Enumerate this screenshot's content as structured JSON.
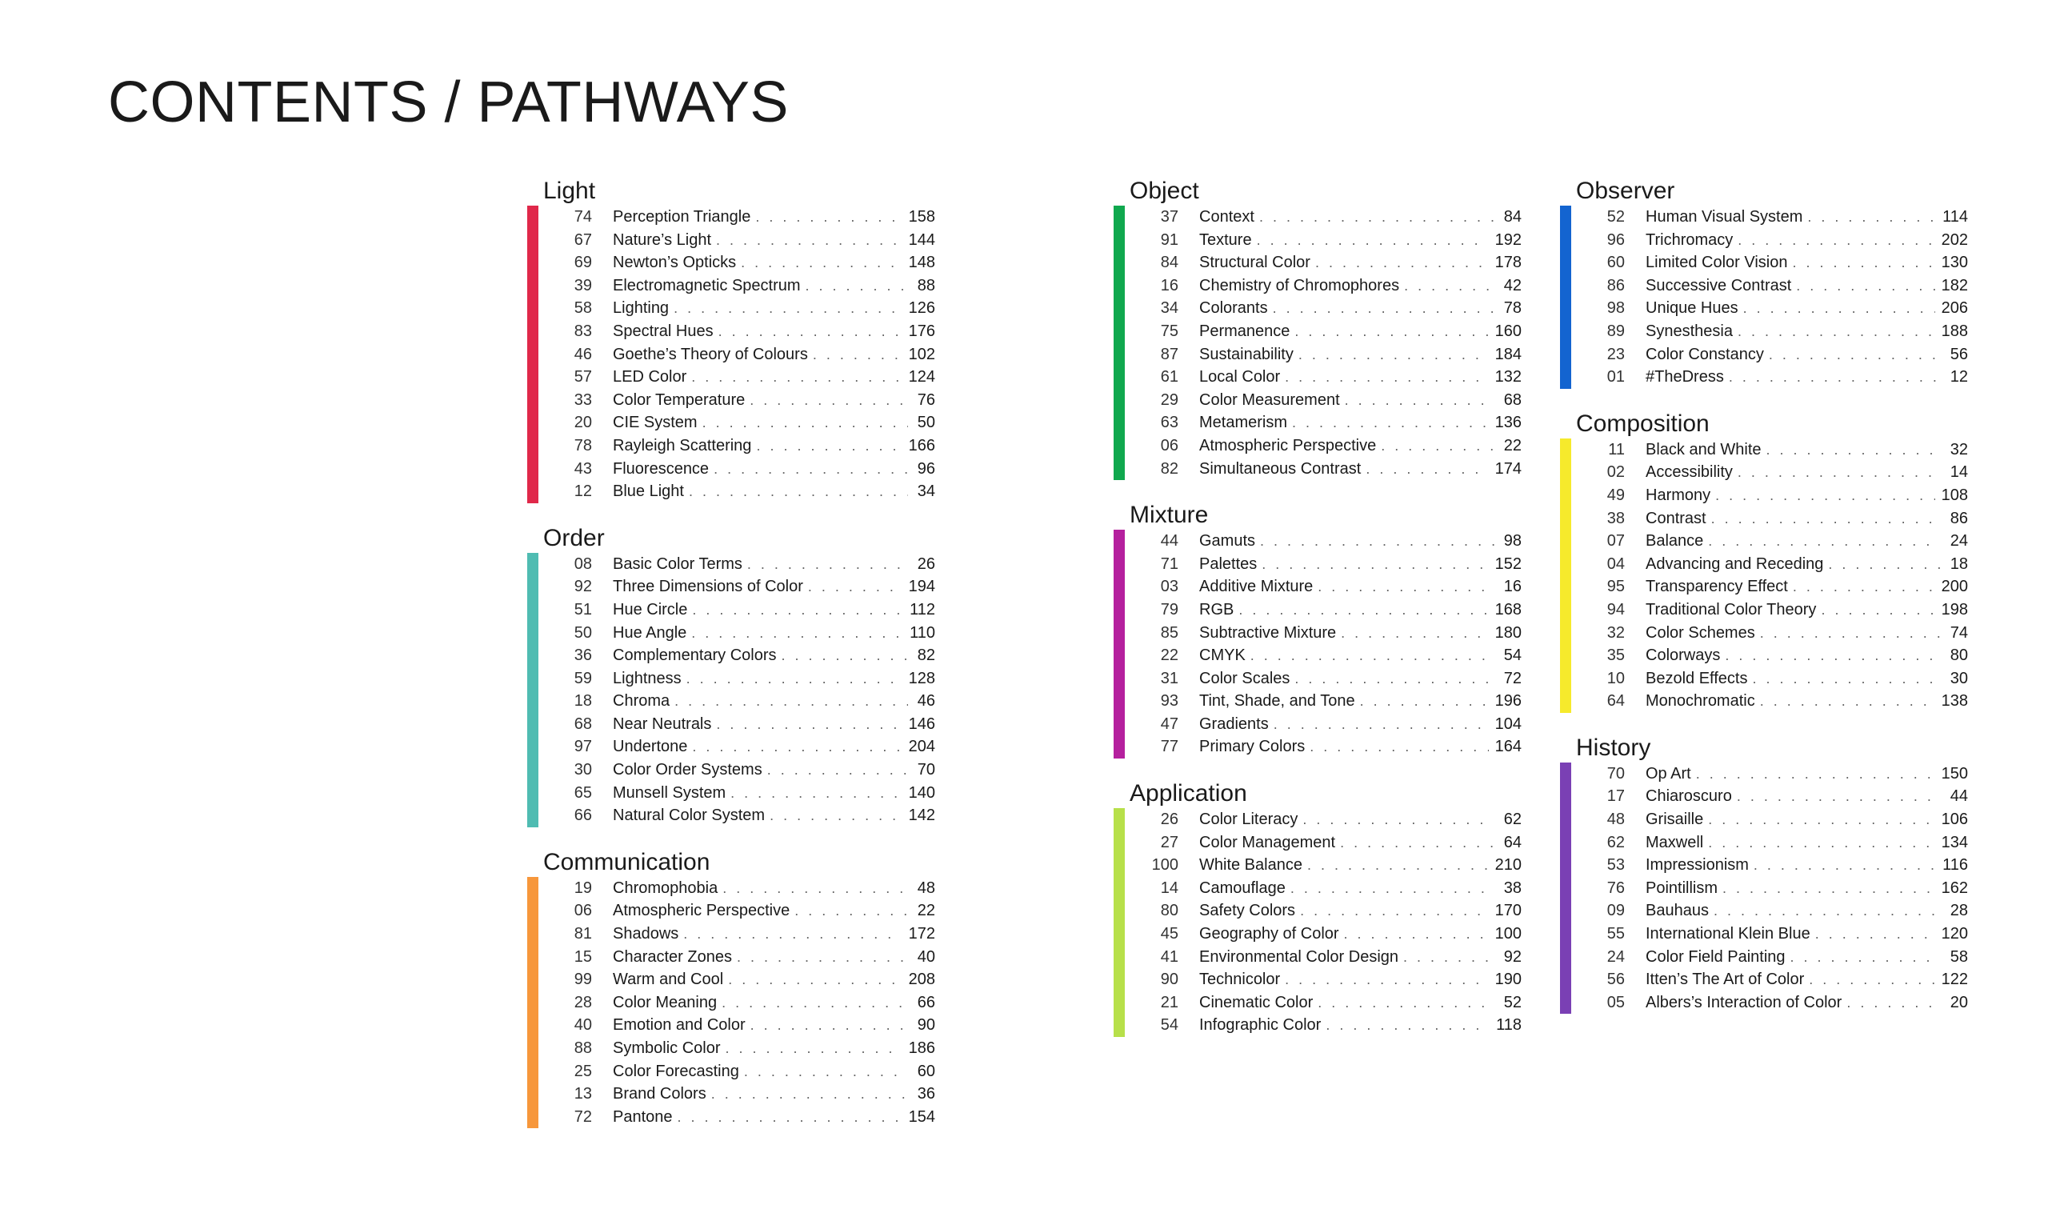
{
  "page_title": "CONTENTS / PATHWAYS",
  "columns": [
    [
      {
        "title": "Light",
        "color": "#e0284a",
        "entries": [
          {
            "num": "74",
            "title": "Perception Triangle",
            "page": "158"
          },
          {
            "num": "67",
            "title": "Nature’s Light",
            "page": "144"
          },
          {
            "num": "69",
            "title": "Newton’s Opticks",
            "page": "148"
          },
          {
            "num": "39",
            "title": "Electromagnetic Spectrum",
            "page": "88"
          },
          {
            "num": "58",
            "title": "Lighting",
            "page": "126"
          },
          {
            "num": "83",
            "title": "Spectral Hues",
            "page": "176"
          },
          {
            "num": "46",
            "title": "Goethe’s Theory of Colours",
            "page": "102"
          },
          {
            "num": "57",
            "title": "LED Color",
            "page": "124"
          },
          {
            "num": "33",
            "title": "Color Temperature",
            "page": "76"
          },
          {
            "num": "20",
            "title": "CIE System",
            "page": "50"
          },
          {
            "num": "78",
            "title": "Rayleigh Scattering",
            "page": "166"
          },
          {
            "num": "43",
            "title": "Fluorescence",
            "page": "96"
          },
          {
            "num": "12",
            "title": "Blue Light",
            "page": "34"
          }
        ]
      },
      {
        "title": "Order",
        "color": "#4fbcb2",
        "entries": [
          {
            "num": "08",
            "title": "Basic Color Terms",
            "page": "26"
          },
          {
            "num": "92",
            "title": "Three Dimensions of Color",
            "page": "194"
          },
          {
            "num": "51",
            "title": "Hue Circle",
            "page": "112"
          },
          {
            "num": "50",
            "title": "Hue Angle",
            "page": "110"
          },
          {
            "num": "36",
            "title": "Complementary Colors",
            "page": "82"
          },
          {
            "num": "59",
            "title": "Lightness",
            "page": "128"
          },
          {
            "num": "18",
            "title": "Chroma",
            "page": "46"
          },
          {
            "num": "68",
            "title": "Near Neutrals",
            "page": "146"
          },
          {
            "num": "97",
            "title": "Undertone",
            "page": "204"
          },
          {
            "num": "30",
            "title": "Color Order Systems",
            "page": "70"
          },
          {
            "num": "65",
            "title": "Munsell System",
            "page": "140"
          },
          {
            "num": "66",
            "title": "Natural Color System",
            "page": "142"
          }
        ]
      },
      {
        "title": "Communication",
        "color": "#f7973b",
        "entries": [
          {
            "num": "19",
            "title": "Chromophobia",
            "page": "48"
          },
          {
            "num": "06",
            "title": "Atmospheric Perspective",
            "page": "22"
          },
          {
            "num": "81",
            "title": "Shadows",
            "page": "172"
          },
          {
            "num": "15",
            "title": "Character Zones",
            "page": "40"
          },
          {
            "num": "99",
            "title": "Warm and Cool",
            "page": "208"
          },
          {
            "num": "28",
            "title": "Color Meaning",
            "page": "66"
          },
          {
            "num": "40",
            "title": "Emotion and Color",
            "page": "90"
          },
          {
            "num": "88",
            "title": "Symbolic Color",
            "page": "186"
          },
          {
            "num": "25",
            "title": "Color Forecasting",
            "page": "60"
          },
          {
            "num": "13",
            "title": "Brand Colors",
            "page": "36"
          },
          {
            "num": "72",
            "title": "Pantone",
            "page": "154"
          }
        ]
      }
    ],
    [
      {
        "title": "Object",
        "color": "#10a84e",
        "entries": [
          {
            "num": "37",
            "title": "Context",
            "page": "84"
          },
          {
            "num": "91",
            "title": "Texture",
            "page": "192"
          },
          {
            "num": "84",
            "title": "Structural Color",
            "page": "178"
          },
          {
            "num": "16",
            "title": "Chemistry of Chromophores",
            "page": "42"
          },
          {
            "num": "34",
            "title": "Colorants",
            "page": "78"
          },
          {
            "num": "75",
            "title": "Permanence",
            "page": "160"
          },
          {
            "num": "87",
            "title": "Sustainability",
            "page": "184"
          },
          {
            "num": "61",
            "title": "Local Color",
            "page": "132"
          },
          {
            "num": "29",
            "title": "Color Measurement",
            "page": "68"
          },
          {
            "num": "63",
            "title": "Metamerism",
            "page": "136"
          },
          {
            "num": "06",
            "title": "Atmospheric Perspective",
            "page": "22"
          },
          {
            "num": "82",
            "title": "Simultaneous Contrast",
            "page": "174"
          }
        ]
      },
      {
        "title": "Mixture",
        "color": "#b5209e",
        "entries": [
          {
            "num": "44",
            "title": "Gamuts",
            "page": "98"
          },
          {
            "num": "71",
            "title": "Palettes",
            "page": "152"
          },
          {
            "num": "03",
            "title": "Additive Mixture",
            "page": "16"
          },
          {
            "num": "79",
            "title": "RGB",
            "page": "168"
          },
          {
            "num": "85",
            "title": "Subtractive Mixture",
            "page": "180"
          },
          {
            "num": "22",
            "title": "CMYK",
            "page": "54"
          },
          {
            "num": "31",
            "title": "Color Scales",
            "page": "72"
          },
          {
            "num": "93",
            "title": "Tint, Shade, and Tone",
            "page": "196"
          },
          {
            "num": "47",
            "title": "Gradients",
            "page": "104"
          },
          {
            "num": "77",
            "title": "Primary Colors",
            "page": "164"
          }
        ]
      },
      {
        "title": "Application",
        "color": "#b7e04a",
        "entries": [
          {
            "num": "26",
            "title": "Color Literacy",
            "page": "62"
          },
          {
            "num": "27",
            "title": "Color Management",
            "page": "64"
          },
          {
            "num": "100",
            "title": "White Balance",
            "page": "210"
          },
          {
            "num": "14",
            "title": "Camouflage",
            "page": "38"
          },
          {
            "num": "80",
            "title": "Safety Colors",
            "page": "170"
          },
          {
            "num": "45",
            "title": "Geography of Color",
            "page": "100"
          },
          {
            "num": "41",
            "title": "Environmental Color Design",
            "page": "92"
          },
          {
            "num": "90",
            "title": "Technicolor",
            "page": "190"
          },
          {
            "num": "21",
            "title": "Cinematic Color",
            "page": "52"
          },
          {
            "num": "54",
            "title": "Infographic Color",
            "page": "118"
          }
        ]
      }
    ],
    [
      {
        "title": "Observer",
        "color": "#1364d0",
        "entries": [
          {
            "num": "52",
            "title": "Human Visual System",
            "page": "114"
          },
          {
            "num": "96",
            "title": "Trichromacy",
            "page": "202"
          },
          {
            "num": "60",
            "title": "Limited Color Vision",
            "page": "130"
          },
          {
            "num": "86",
            "title": "Successive Contrast",
            "page": "182"
          },
          {
            "num": "98",
            "title": "Unique Hues",
            "page": "206"
          },
          {
            "num": "89",
            "title": "Synesthesia",
            "page": "188"
          },
          {
            "num": "23",
            "title": "Color Constancy",
            "page": "56"
          },
          {
            "num": "01",
            "title": "#TheDress",
            "page": "12"
          }
        ]
      },
      {
        "title": "Composition",
        "color": "#f6ea2c",
        "entries": [
          {
            "num": "11",
            "title": "Black and White",
            "page": "32"
          },
          {
            "num": "02",
            "title": "Accessibility",
            "page": "14"
          },
          {
            "num": "49",
            "title": "Harmony",
            "page": "108"
          },
          {
            "num": "38",
            "title": "Contrast",
            "page": "86"
          },
          {
            "num": "07",
            "title": "Balance",
            "page": "24"
          },
          {
            "num": "04",
            "title": "Advancing and Receding",
            "page": "18"
          },
          {
            "num": "95",
            "title": "Transparency Effect",
            "page": "200"
          },
          {
            "num": "94",
            "title": "Traditional Color Theory",
            "page": "198"
          },
          {
            "num": "32",
            "title": "Color Schemes",
            "page": "74"
          },
          {
            "num": "35",
            "title": "Colorways",
            "page": "80"
          },
          {
            "num": "10",
            "title": "Bezold Effects",
            "page": "30"
          },
          {
            "num": "64",
            "title": "Monochromatic",
            "page": "138"
          }
        ]
      },
      {
        "title": "History",
        "color": "#7a40b4",
        "entries": [
          {
            "num": "70",
            "title": "Op Art",
            "page": "150"
          },
          {
            "num": "17",
            "title": "Chiaroscuro",
            "page": "44"
          },
          {
            "num": "48",
            "title": "Grisaille",
            "page": "106"
          },
          {
            "num": "62",
            "title": "Maxwell",
            "page": "134"
          },
          {
            "num": "53",
            "title": "Impressionism",
            "page": "116"
          },
          {
            "num": "76",
            "title": "Pointillism",
            "page": "162"
          },
          {
            "num": "09",
            "title": "Bauhaus",
            "page": "28"
          },
          {
            "num": "55",
            "title": "International Klein Blue",
            "page": "120"
          },
          {
            "num": "24",
            "title": "Color Field Painting",
            "page": "58"
          },
          {
            "num": "56",
            "title": "Itten’s The Art of Color",
            "page": "122"
          },
          {
            "num": "05",
            "title": "Albers’s Interaction of Color",
            "page": "20"
          }
        ]
      }
    ]
  ]
}
